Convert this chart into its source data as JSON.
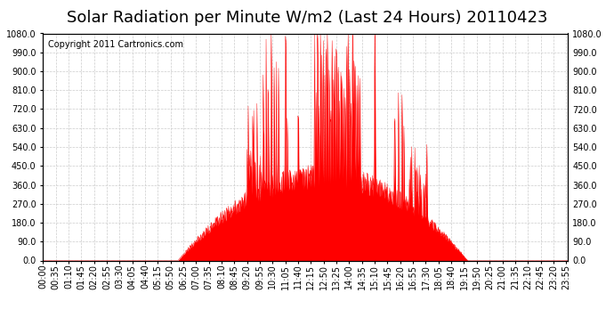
{
  "title": "Solar Radiation per Minute W/m2 (Last 24 Hours) 20110423",
  "copyright_text": "Copyright 2011 Cartronics.com",
  "background_color": "#ffffff",
  "plot_bg_color": "#ffffff",
  "bar_color": "#ff0000",
  "dashed_line_color": "#ff0000",
  "grid_color": "#cccccc",
  "ymin": 0.0,
  "ymax": 1080.0,
  "yticks": [
    0.0,
    90.0,
    180.0,
    270.0,
    360.0,
    450.0,
    540.0,
    630.0,
    720.0,
    810.0,
    900.0,
    990.0,
    1080.0
  ],
  "num_minutes": 1440,
  "title_fontsize": 13,
  "tick_fontsize": 7,
  "copyright_fontsize": 7
}
